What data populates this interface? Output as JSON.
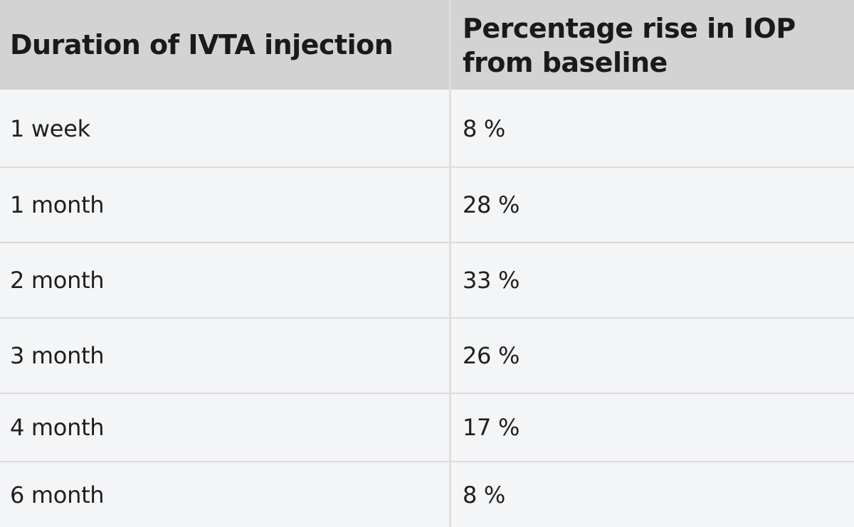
{
  "table": {
    "headers": [
      "Duration of IVTA injection",
      "Percentage rise in IOP from baseline"
    ],
    "rows": [
      {
        "duration": "1 week",
        "rise": "8 %"
      },
      {
        "duration": "1 month",
        "rise": "28 %"
      },
      {
        "duration": "2 month",
        "rise": "33 %"
      },
      {
        "duration": "3 month",
        "rise": "26 %"
      },
      {
        "duration": "4 month",
        "rise": "17 %"
      },
      {
        "duration": "6 month",
        "rise": "8 %"
      }
    ]
  }
}
